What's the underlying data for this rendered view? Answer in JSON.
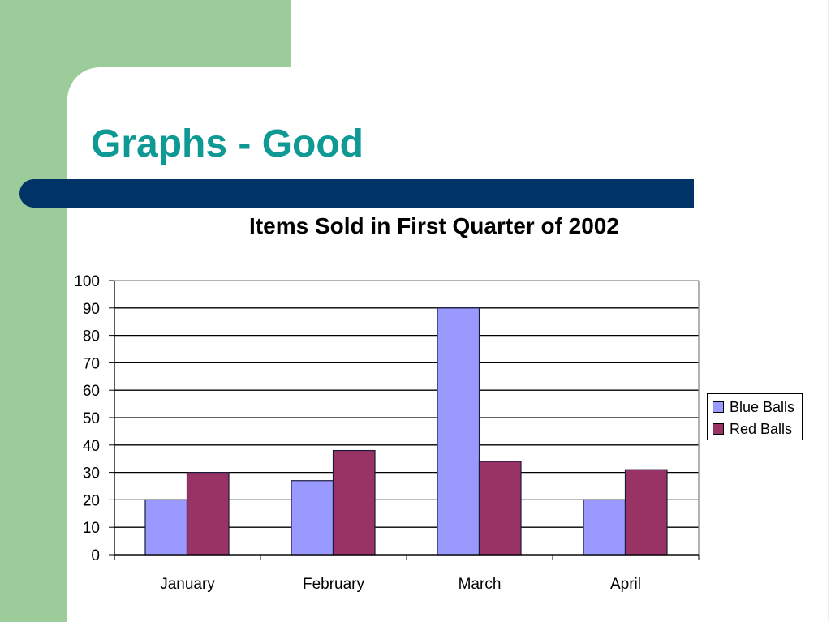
{
  "slide": {
    "title": "Graphs - Good",
    "colors": {
      "green": "#9bcc9a",
      "title": "#0f9994",
      "bar": "#003366"
    }
  },
  "chart_data": {
    "type": "bar",
    "title": "Items Sold in First Quarter of 2002",
    "categories": [
      "January",
      "February",
      "March",
      "April"
    ],
    "series": [
      {
        "name": "Blue Balls",
        "color": "#9999ff",
        "values": [
          20,
          27,
          90,
          20
        ]
      },
      {
        "name": "Red Balls",
        "color": "#993366",
        "values": [
          30,
          38,
          34,
          31
        ]
      }
    ],
    "xlabel": "",
    "ylabel": "",
    "ylim": [
      0,
      100
    ],
    "yticks": [
      0,
      10,
      20,
      30,
      40,
      50,
      60,
      70,
      80,
      90,
      100
    ],
    "grid": true,
    "legend_position": "right"
  }
}
